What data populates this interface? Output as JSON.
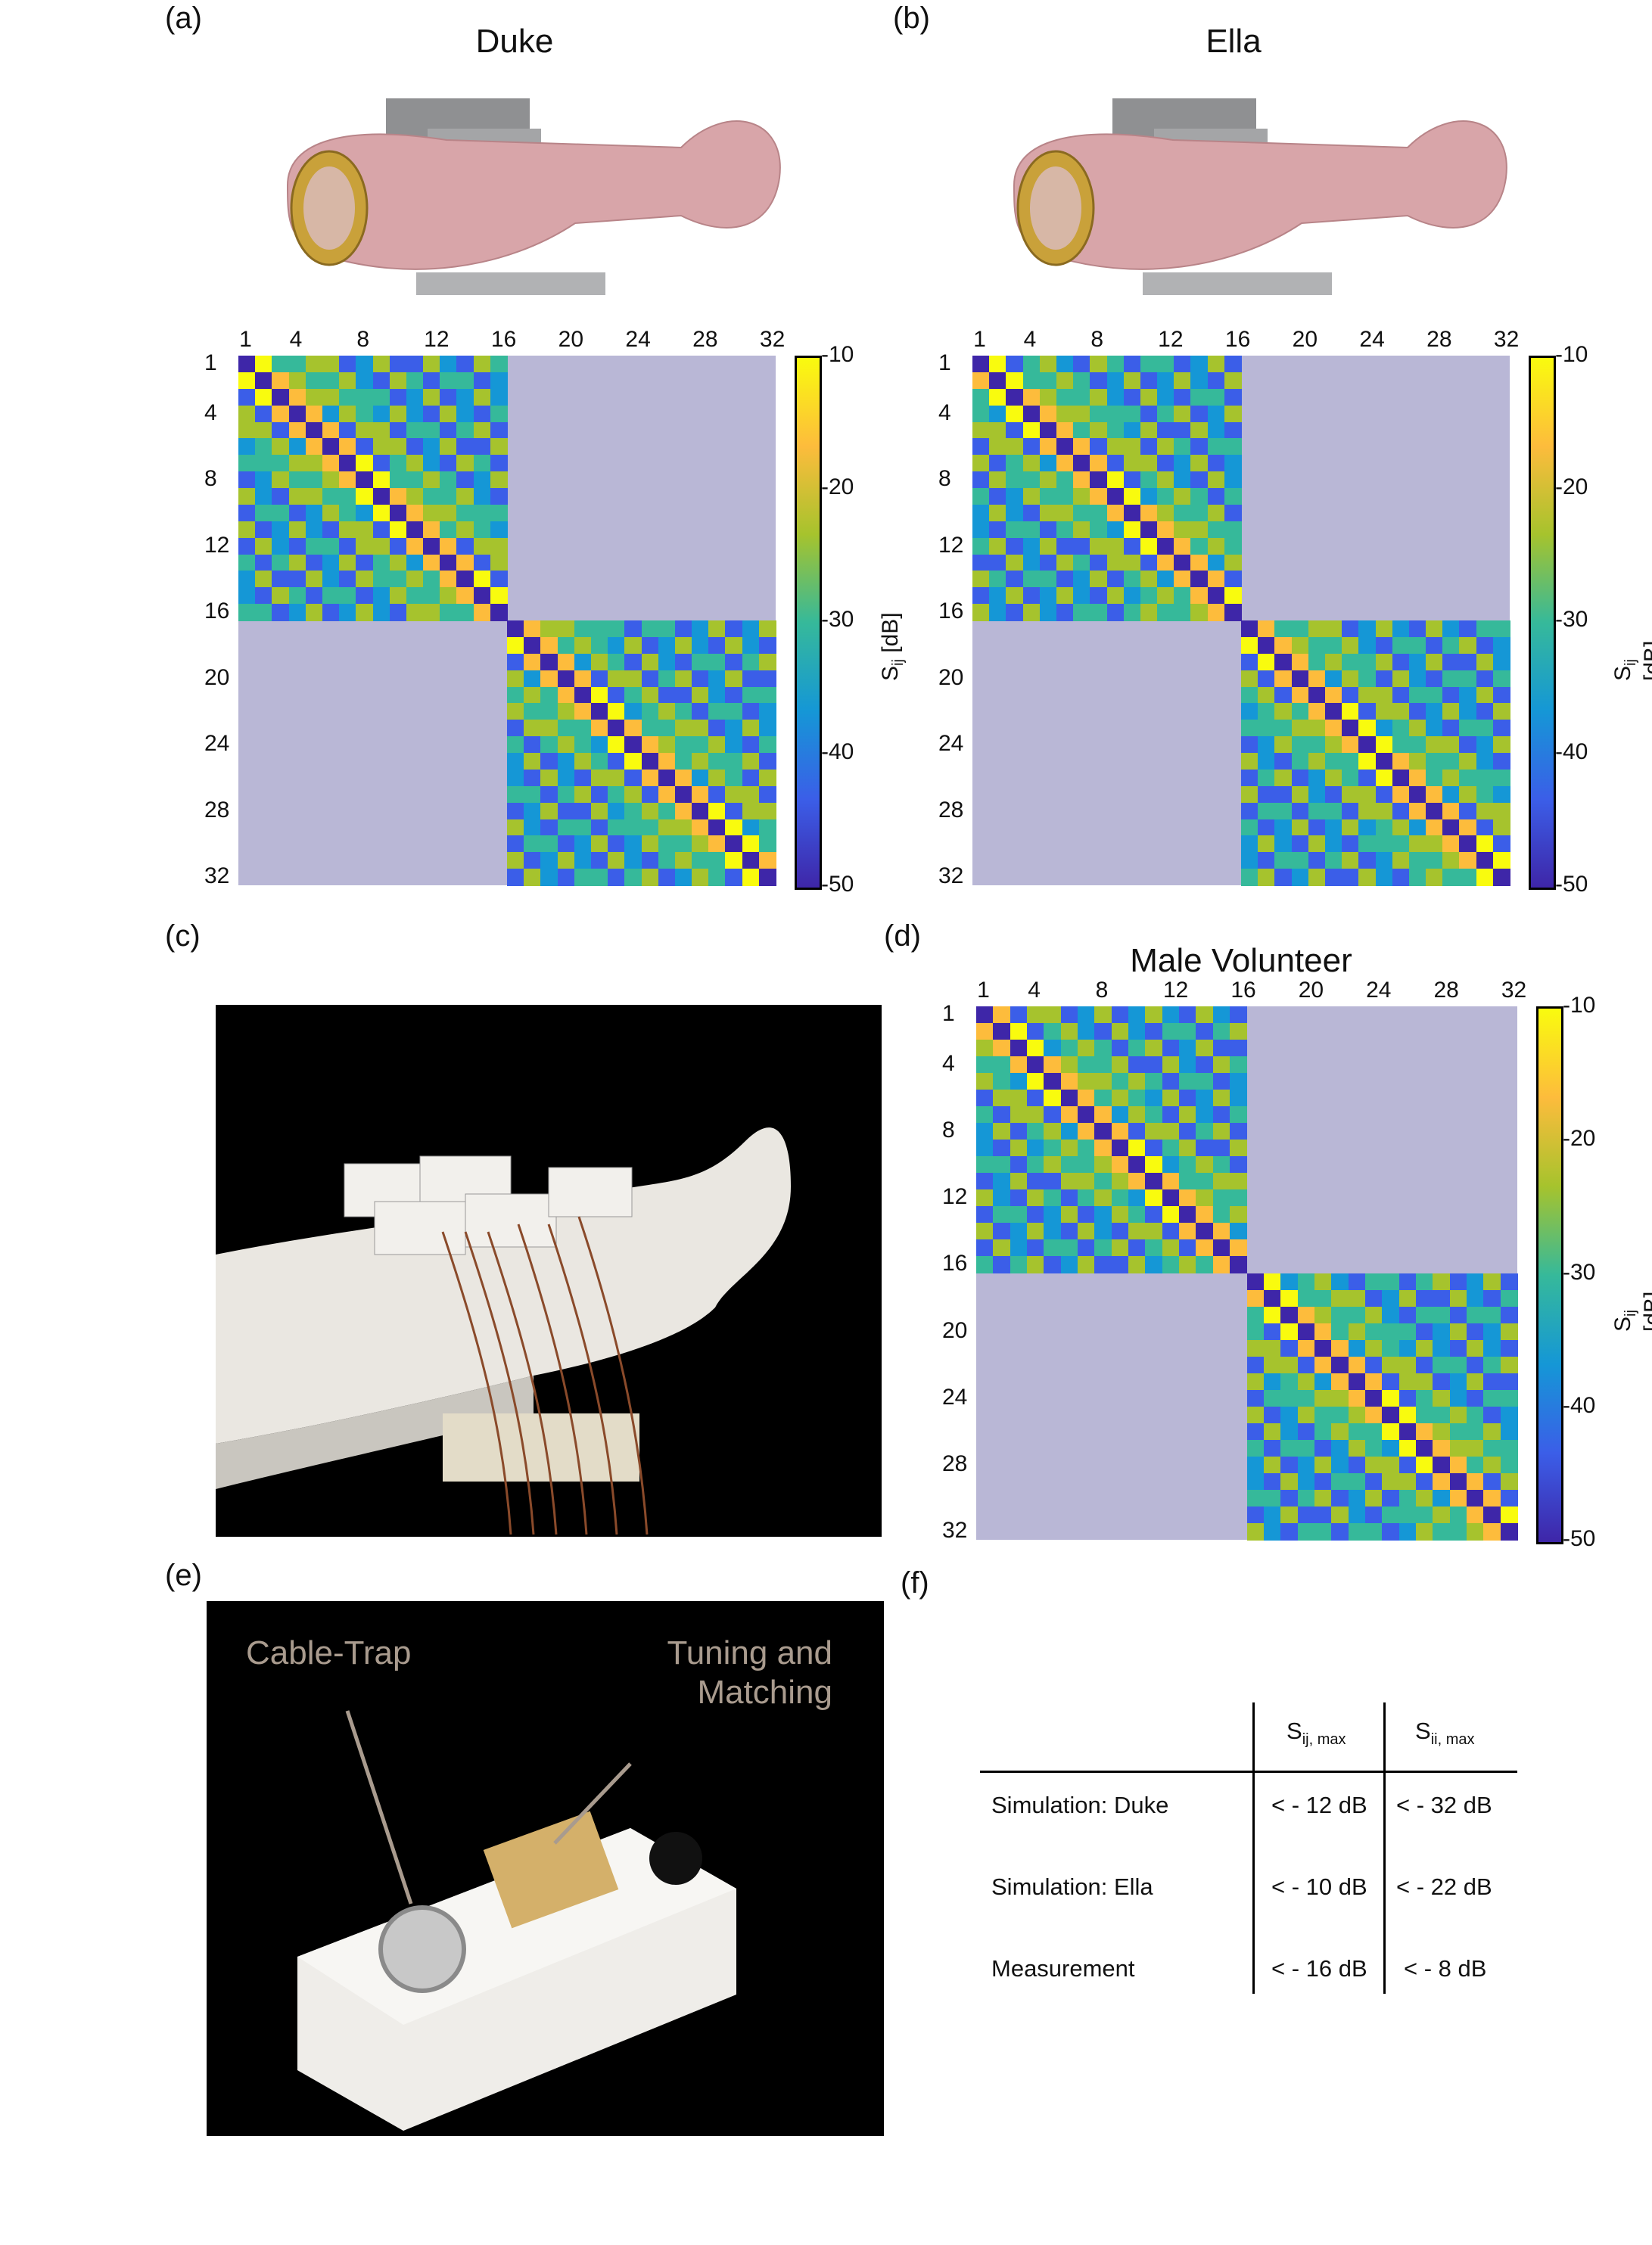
{
  "panels": {
    "a": {
      "label": "(a)",
      "title": "Duke"
    },
    "b": {
      "label": "(b)",
      "title": "Ella"
    },
    "c": {
      "label": "(c)"
    },
    "d": {
      "label": "(d)",
      "title": "Male Volunteer"
    },
    "e": {
      "label": "(e)",
      "annotations": {
        "cable_trap": "Cable-Trap",
        "tuning_1": "Tuning and",
        "tuning_2": "Matching"
      }
    },
    "f": {
      "label": "(f)"
    }
  },
  "colorbar": {
    "label_main": "S",
    "label_sub": "ij",
    "label_unit": " [dB]",
    "ticks": [
      "-10",
      "-20",
      "-30",
      "-40",
      "-50"
    ],
    "colors": [
      "#f9fb0e",
      "#fdbc3c",
      "#a6c32d",
      "#36b99a",
      "#1597d6",
      "#3b5ee8",
      "#3e26a8"
    ]
  },
  "axis_ticks": [
    "1",
    "4",
    "8",
    "12",
    "16",
    "20",
    "24",
    "28",
    "32"
  ],
  "chart_data": [
    {
      "type": "heatmap",
      "title": "Duke",
      "x": "channel 1–32",
      "y": "channel 1–32",
      "zlabel": "Sij [dB]",
      "zlim": [
        -50,
        -10
      ],
      "note": "coupling matrix; off-block regions (1–16 vs 17–32) not computed"
    },
    {
      "type": "heatmap",
      "title": "Ella",
      "x": "channel 1–32",
      "y": "channel 1–32",
      "zlabel": "Sij [dB]",
      "zlim": [
        -50,
        -10
      ]
    },
    {
      "type": "heatmap",
      "title": "Male Volunteer",
      "x": "channel 1–32",
      "y": "channel 1–32",
      "zlabel": "Sij [dB]",
      "zlim": [
        -50,
        -10
      ]
    }
  ],
  "table": {
    "col1_main": "S",
    "col1_sub": "ij, max",
    "col2_main": "S",
    "col2_sub": "ii, max",
    "rows": [
      {
        "label": "Simulation: Duke",
        "sij": "< - 12 dB",
        "sii": "< - 32 dB"
      },
      {
        "label": "Simulation: Ella",
        "sij": "< - 10 dB",
        "sii": "< - 22 dB"
      },
      {
        "label": "Measurement",
        "sij": "< - 16 dB",
        "sii": "< - 8 dB"
      }
    ]
  }
}
